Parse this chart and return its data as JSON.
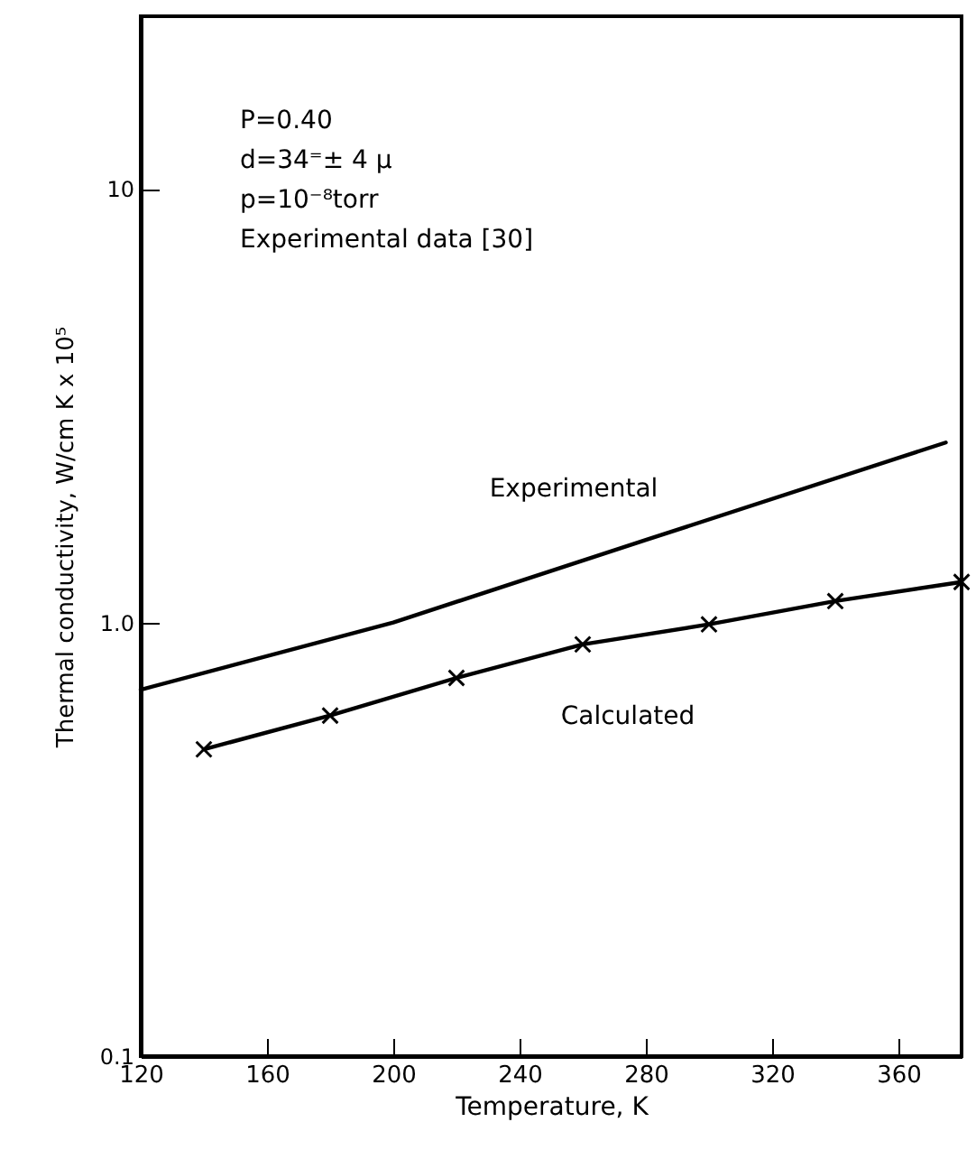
{
  "chart_data": {
    "type": "line",
    "xlabel": "Temperature,    K",
    "ylabel": "Thermal  conductivity,    W/cm  K x 10⁵",
    "annotations": [
      "P=0.40",
      "d=34⁼± 4 μ",
      "p=10⁻⁸torr",
      "Experimental  data  [30]"
    ],
    "log": "y",
    "xlim": [
      120,
      380
    ],
    "xticks": [
      120,
      160,
      200,
      240,
      280,
      320,
      360
    ],
    "ylim": [
      0.1,
      25
    ],
    "yticks": [
      0.1,
      {
        "value": 1,
        "label": "1.0"
      },
      10
    ],
    "grid": false,
    "series": [
      {
        "name": "Experimental",
        "color": "#000000",
        "marker": "none",
        "x": [
          120,
          200,
          280,
          375
        ],
        "values": [
          0.7,
          1.0,
          1.55,
          2.6
        ]
      },
      {
        "name": "Calculated",
        "color": "#000000",
        "marker": "cross",
        "x": [
          140,
          180,
          220,
          260,
          300,
          340,
          380
        ],
        "values": [
          0.51,
          0.61,
          0.745,
          0.89,
          0.99,
          1.12,
          1.24
        ]
      }
    ]
  }
}
